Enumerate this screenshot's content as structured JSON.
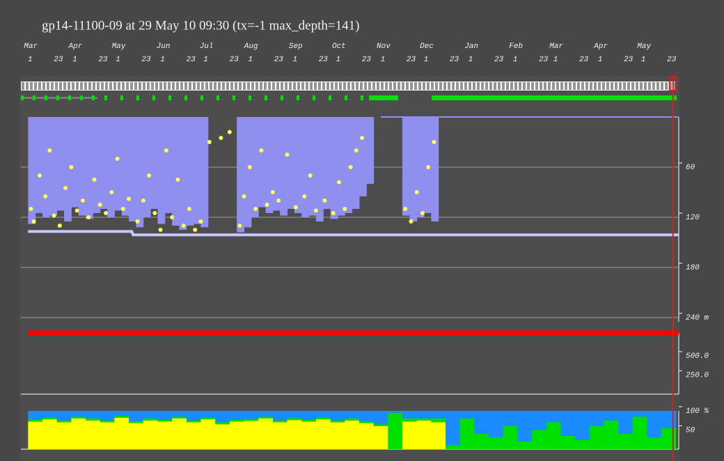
{
  "chart_data": [
    {
      "type": "scatter",
      "title": "gp14-11100-09 at 29 May 10 09:30 (tx=-1 max_depth=141)",
      "xlim": [
        -5,
        452
      ],
      "months": [
        {
          "value": 0,
          "label": "Mar"
        },
        {
          "value": 31,
          "label": "Apr"
        },
        {
          "value": 61,
          "label": "May"
        },
        {
          "value": 92,
          "label": "Jun"
        },
        {
          "value": 122,
          "label": "Jul"
        },
        {
          "value": 153,
          "label": "Aug"
        },
        {
          "value": 184,
          "label": "Sep"
        },
        {
          "value": 214,
          "label": "Oct"
        },
        {
          "value": 245,
          "label": "Nov"
        },
        {
          "value": 275,
          "label": "Dec"
        },
        {
          "value": 306,
          "label": "Jan"
        },
        {
          "value": 337,
          "label": "Feb"
        },
        {
          "value": 365,
          "label": "Mar"
        },
        {
          "value": 396,
          "label": "Apr"
        },
        {
          "value": 426,
          "label": "May"
        }
      ],
      "xticks": [
        {
          "value": 0,
          "label": "1"
        },
        {
          "value": 22,
          "label": "23"
        },
        {
          "value": 31,
          "label": "1"
        },
        {
          "value": 53,
          "label": "23"
        },
        {
          "value": 61,
          "label": "1"
        },
        {
          "value": 83,
          "label": "23"
        },
        {
          "value": 92,
          "label": "1"
        },
        {
          "value": 114,
          "label": "23"
        },
        {
          "value": 122,
          "label": "1"
        },
        {
          "value": 144,
          "label": "23"
        },
        {
          "value": 153,
          "label": "1"
        },
        {
          "value": 175,
          "label": "23"
        },
        {
          "value": 184,
          "label": "1"
        },
        {
          "value": 206,
          "label": "23"
        },
        {
          "value": 214,
          "label": "1"
        },
        {
          "value": 236,
          "label": "23"
        },
        {
          "value": 245,
          "label": "1"
        },
        {
          "value": 267,
          "label": "23"
        },
        {
          "value": 275,
          "label": "1"
        },
        {
          "value": 297,
          "label": "23"
        },
        {
          "value": 306,
          "label": "1"
        },
        {
          "value": 328,
          "label": "23"
        },
        {
          "value": 337,
          "label": "1"
        },
        {
          "value": 359,
          "label": "23"
        },
        {
          "value": 365,
          "label": "1"
        },
        {
          "value": 387,
          "label": "23"
        },
        {
          "value": 396,
          "label": "1"
        },
        {
          "value": 418,
          "label": "23"
        },
        {
          "value": 426,
          "label": "1"
        },
        {
          "value": 448,
          "label": "23"
        }
      ],
      "cursor_day": 448,
      "ylim": [
        0,
        245
      ],
      "yticks": [
        60,
        120,
        180,
        {
          "value": 240,
          "label": "240 m"
        }
      ],
      "grid": true,
      "series": [
        {
          "type": "bar",
          "color": "#8f8ff0",
          "x": [
            0,
            5,
            10,
            15,
            20,
            25,
            30,
            35,
            40,
            45,
            50,
            55,
            60,
            65,
            70,
            75,
            80,
            85,
            90,
            95,
            100,
            105,
            110,
            115,
            120,
            125,
            130,
            135,
            140,
            145,
            150,
            155,
            160,
            165,
            170,
            175,
            180,
            185,
            190,
            195,
            200,
            205,
            210,
            215,
            220,
            225,
            230,
            235,
            240,
            245,
            250,
            255,
            260,
            265,
            270,
            275,
            280,
            285
          ],
          "values": [
            128,
            115,
            120,
            118,
            112,
            125,
            108,
            118,
            122,
            115,
            110,
            120,
            112,
            118,
            125,
            132,
            120,
            110,
            128,
            115,
            130,
            135,
            130,
            128,
            132,
            null,
            null,
            null,
            null,
            138,
            132,
            120,
            108,
            115,
            112,
            118,
            110,
            115,
            120,
            118,
            125,
            110,
            122,
            118,
            115,
            110,
            95,
            80,
            null,
            null,
            null,
            null,
            118,
            125,
            120,
            115,
            125,
            null
          ]
        },
        {
          "type": "scatter",
          "color": "#ffff55",
          "x": [
            2,
            4,
            8,
            12,
            15,
            18,
            22,
            26,
            30,
            34,
            38,
            42,
            46,
            50,
            54,
            58,
            62,
            66,
            70,
            76,
            80,
            84,
            88,
            92,
            96,
            100,
            104,
            108,
            112,
            116,
            120,
            126,
            134,
            140,
            147,
            150,
            154,
            158,
            162,
            166,
            170,
            174,
            180,
            186,
            192,
            196,
            200,
            206,
            212,
            216,
            220,
            224,
            228,
            232,
            262,
            266,
            270,
            274,
            278,
            282
          ],
          "values": [
            110,
            125,
            70,
            95,
            40,
            118,
            130,
            85,
            60,
            112,
            100,
            120,
            75,
            105,
            115,
            90,
            50,
            110,
            98,
            125,
            100,
            70,
            115,
            135,
            40,
            120,
            75,
            130,
            110,
            135,
            125,
            30,
            25,
            18,
            130,
            95,
            60,
            110,
            40,
            105,
            90,
            100,
            45,
            108,
            95,
            70,
            112,
            100,
            115,
            78,
            110,
            60,
            40,
            25,
            110,
            125,
            90,
            115,
            60,
            30
          ]
        },
        {
          "type": "line",
          "color": "#c8c8ff",
          "width": 4,
          "x": [
            0,
            72,
            73,
            452
          ],
          "values": [
            137,
            137,
            141,
            141
          ]
        },
        {
          "type": "line",
          "color": "#8f8ff0",
          "width": 2,
          "x": [
            245,
            452
          ],
          "values": [
            0,
            0
          ]
        }
      ]
    },
    {
      "type": "line",
      "xlim": [
        -5,
        452
      ],
      "ylim": [
        0,
        800
      ],
      "yticks": [
        {
          "value": 250,
          "label": "250.0"
        },
        {
          "value": 500,
          "label": "500.0"
        }
      ],
      "series": [
        {
          "type": "line",
          "color": "#ff0000",
          "width": 7,
          "x": [
            0,
            452
          ],
          "values": [
            800,
            800
          ]
        }
      ]
    },
    {
      "type": "bar",
      "xlim": [
        -5,
        452
      ],
      "ylim": [
        0,
        100
      ],
      "yticks": [
        50,
        {
          "value": 100,
          "label": "100 %"
        }
      ],
      "x": [
        0,
        10,
        20,
        30,
        40,
        50,
        60,
        70,
        80,
        90,
        100,
        110,
        120,
        130,
        140,
        150,
        160,
        170,
        180,
        190,
        200,
        210,
        220,
        230,
        240,
        250,
        260,
        270,
        280,
        290,
        300,
        310,
        320,
        330,
        340,
        350,
        360,
        370,
        380,
        390,
        400,
        410,
        420,
        430,
        440
      ],
      "series": [
        {
          "color": "#ffff00",
          "values": [
            72,
            78,
            70,
            80,
            75,
            70,
            82,
            68,
            75,
            72,
            80,
            70,
            78,
            65,
            72,
            74,
            80,
            70,
            76,
            72,
            78,
            70,
            75,
            68,
            60,
            0,
            72,
            75,
            70,
            0,
            0,
            0,
            0,
            0,
            0,
            0,
            0,
            0,
            0,
            0,
            0,
            0,
            0,
            0,
            0
          ]
        },
        {
          "color": "#00e000",
          "values": [
            5,
            5,
            5,
            5,
            5,
            5,
            5,
            5,
            5,
            5,
            5,
            5,
            5,
            5,
            5,
            5,
            5,
            5,
            5,
            5,
            5,
            5,
            5,
            5,
            5,
            95,
            8,
            5,
            10,
            10,
            80,
            40,
            30,
            60,
            20,
            50,
            70,
            35,
            25,
            60,
            75,
            40,
            85,
            30,
            55
          ]
        },
        {
          "color": "#1a8cff",
          "values": [
            23,
            17,
            25,
            15,
            20,
            25,
            13,
            27,
            20,
            23,
            15,
            25,
            17,
            30,
            23,
            21,
            15,
            25,
            19,
            23,
            17,
            25,
            20,
            27,
            35,
            5,
            20,
            20,
            20,
            90,
            20,
            60,
            70,
            40,
            80,
            50,
            30,
            65,
            75,
            40,
            25,
            60,
            15,
            70,
            45
          ]
        }
      ]
    }
  ]
}
